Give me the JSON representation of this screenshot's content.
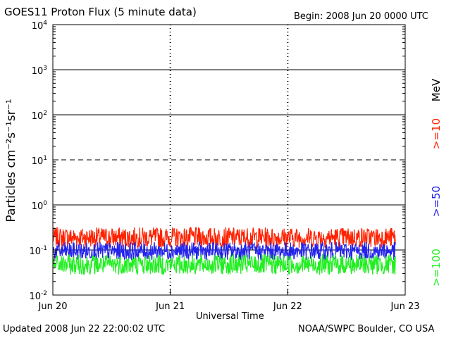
{
  "header": {
    "title": "GOES11 Proton Flux (5 minute data)",
    "begin": "Begin: 2008 Jun 20 0000 UTC"
  },
  "footer": {
    "updated": "Updated 2008 Jun 22 22:00:02 UTC",
    "credit": "NOAA/SWPC Boulder, CO USA"
  },
  "chart_data": {
    "type": "line",
    "title": "GOES11 Proton Flux (5 minute data)",
    "xlabel": "Universal Time",
    "ylabel": "Particles cm⁻²s⁻¹sr⁻¹",
    "y_scale": "log",
    "ylim": [
      0.01,
      10000
    ],
    "xlim": [
      "2008-06-20 00:00",
      "2008-06-23 00:00"
    ],
    "x_ticks": [
      "Jun 20",
      "Jun 21",
      "Jun 22",
      "Jun 23"
    ],
    "y_ticks": [
      {
        "base": "10",
        "exp": "4",
        "value": 10000
      },
      {
        "base": "10",
        "exp": "3",
        "value": 1000
      },
      {
        "base": "10",
        "exp": "2",
        "value": 100
      },
      {
        "base": "10",
        "exp": "1",
        "value": 10
      },
      {
        "base": "10",
        "exp": "0",
        "value": 1
      },
      {
        "base": "10",
        "exp": "-1",
        "value": 0.1
      },
      {
        "base": "10",
        "exp": "-2",
        "value": 0.01
      }
    ],
    "legend_unit": "MeV",
    "legend_position": "right",
    "threshold_lines": [
      {
        "value": 1000,
        "style": "solid"
      },
      {
        "value": 100,
        "style": "solid"
      },
      {
        "value": 10,
        "style": "dashed"
      },
      {
        "value": 1,
        "style": "solid"
      },
      {
        "value": 0.1,
        "style": "solid"
      }
    ],
    "x_end": "2008-06-22 22:00",
    "series": [
      {
        "name": ">=10",
        "color": "#ff2200",
        "baseline": 0.18,
        "spread": 0.45
      },
      {
        "name": ">=50",
        "color": "#2222ee",
        "baseline": 0.09,
        "spread": 0.4
      },
      {
        "name": ">=100",
        "color": "#22ee22",
        "baseline": 0.045,
        "spread": 0.45
      }
    ]
  }
}
